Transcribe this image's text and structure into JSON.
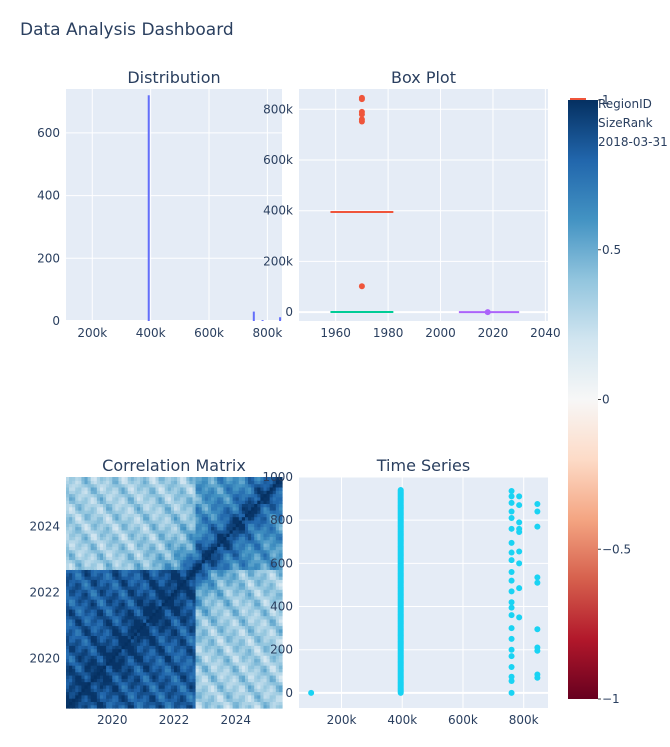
{
  "title": "Data Analysis Dashboard",
  "colors": {
    "plot_bg": "#e5ecf6",
    "grid": "#ffffff",
    "text": "#2a3f5f",
    "histogram": "#636efa",
    "series_regionid": "#ef553b",
    "series_sizerank": "#00cc96",
    "series_date": "#ab63fa",
    "scatter": "#19d3f3"
  },
  "legend": {
    "entries": [
      "RegionID",
      "SizeRank",
      "2018-03-31"
    ]
  },
  "colorbar": {
    "ticks": [
      {
        "label": "1",
        "value": 1
      },
      {
        "label": "0.5",
        "value": 0.5
      },
      {
        "label": "0",
        "value": 0
      },
      {
        "label": "−0.5",
        "value": -0.5
      },
      {
        "label": "−1",
        "value": -1
      }
    ],
    "colorscale": [
      "#67001f",
      "#b2182b",
      "#d6604d",
      "#f4a582",
      "#fddbc7",
      "#f7f7f7",
      "#d1e5f0",
      "#92c5de",
      "#4393c3",
      "#2166ac",
      "#053061"
    ]
  },
  "chart_data": [
    {
      "type": "bar",
      "title": "Distribution",
      "xlim": [
        110000,
        850000
      ],
      "ylim": [
        0,
        740
      ],
      "x_ticks": [
        {
          "label": "200k",
          "value": 200000
        },
        {
          "label": "400k",
          "value": 400000
        },
        {
          "label": "600k",
          "value": 600000
        },
        {
          "label": "800k",
          "value": 800000
        }
      ],
      "y_ticks": [
        {
          "label": "0",
          "value": 0
        },
        {
          "label": "200",
          "value": 200
        },
        {
          "label": "400",
          "value": 400
        },
        {
          "label": "600",
          "value": 600
        }
      ],
      "bins": [
        {
          "x0": 100000,
          "x1": 110000,
          "count": 1
        },
        {
          "x0": 390000,
          "x1": 400000,
          "count": 720
        },
        {
          "x0": 750000,
          "x1": 760000,
          "count": 30
        },
        {
          "x0": 780000,
          "x1": 790000,
          "count": 3
        },
        {
          "x0": 840000,
          "x1": 850000,
          "count": 12
        }
      ]
    },
    {
      "type": "box",
      "title": "Box Plot",
      "xlim": [
        1946,
        2041
      ],
      "ylim": [
        -35000,
        880000
      ],
      "x_ticks": [
        {
          "label": "1960",
          "value": 1960
        },
        {
          "label": "1980",
          "value": 1980
        },
        {
          "label": "2000",
          "value": 2000
        },
        {
          "label": "2020",
          "value": 2020
        },
        {
          "label": "2040",
          "value": 2040
        }
      ],
      "y_ticks": [
        {
          "label": "0",
          "value": 0
        },
        {
          "label": "200k",
          "value": 200000
        },
        {
          "label": "400k",
          "value": 400000
        },
        {
          "label": "600k",
          "value": 600000
        },
        {
          "label": "800k",
          "value": 800000
        }
      ],
      "series": [
        {
          "name": "RegionID",
          "x0": 1958,
          "x1": 1982,
          "median": 395000,
          "outliers_x": 1970,
          "outliers": [
            845000,
            840000,
            790000,
            780000,
            760000,
            752000,
            102000
          ]
        },
        {
          "name": "SizeRank",
          "x0": 1958,
          "x1": 1982,
          "median": 500,
          "outliers_x": 1970,
          "outliers": []
        },
        {
          "name": "2018-03-31",
          "x0": 2007,
          "x1": 2030,
          "median": 0,
          "outliers_x": 2018,
          "outliers": [
            0
          ]
        }
      ]
    },
    {
      "type": "heatmap",
      "title": "Correlation Matrix",
      "xlim": [
        2018.5,
        2025.5
      ],
      "ylim": [
        2018.5,
        2025.5
      ],
      "x_ticks": [
        {
          "label": "2020",
          "value": 2020
        },
        {
          "label": "2022",
          "value": 2022
        },
        {
          "label": "2024",
          "value": 2024
        }
      ],
      "y_ticks": [
        {
          "label": "2020",
          "value": 2020
        },
        {
          "label": "2022",
          "value": 2022
        },
        {
          "label": "2024",
          "value": 2024
        }
      ],
      "zlim": [
        -1,
        1
      ],
      "blocks": [
        {
          "from": 2018.5,
          "to": 2022.7,
          "within_corr": 0.82
        },
        {
          "from": 2022.7,
          "to": 2025.5,
          "within_corr": 0.55
        }
      ],
      "cross_block_corr": 0.35,
      "diagonal_corr": 1
    },
    {
      "type": "scatter",
      "title": "Time Series",
      "xlim": [
        60000,
        880000
      ],
      "ylim": [
        -60000,
        1000
      ],
      "ylim_data": [
        -70,
        1000
      ],
      "x_ticks": [
        {
          "label": "200k",
          "value": 200000
        },
        {
          "label": "400k",
          "value": 400000
        },
        {
          "label": "600k",
          "value": 600000
        },
        {
          "label": "800k",
          "value": 800000
        }
      ],
      "y_ticks": [
        {
          "label": "0",
          "value": 0
        },
        {
          "label": "200",
          "value": 200
        },
        {
          "label": "400",
          "value": 400
        },
        {
          "label": "600",
          "value": 600
        },
        {
          "label": "800",
          "value": 800
        },
        {
          "label": "1000",
          "value": 1000
        }
      ],
      "points": [
        {
          "x": 100000,
          "y": 0
        },
        {
          "x": 760000,
          "y": 935
        },
        {
          "x": 760000,
          "y": 910
        },
        {
          "x": 760000,
          "y": 880
        },
        {
          "x": 760000,
          "y": 840
        },
        {
          "x": 760000,
          "y": 810
        },
        {
          "x": 760000,
          "y": 760
        },
        {
          "x": 760000,
          "y": 695
        },
        {
          "x": 760000,
          "y": 650
        },
        {
          "x": 760000,
          "y": 615
        },
        {
          "x": 760000,
          "y": 560
        },
        {
          "x": 760000,
          "y": 520
        },
        {
          "x": 760000,
          "y": 470
        },
        {
          "x": 760000,
          "y": 420
        },
        {
          "x": 760000,
          "y": 395
        },
        {
          "x": 760000,
          "y": 360
        },
        {
          "x": 760000,
          "y": 300
        },
        {
          "x": 760000,
          "y": 250
        },
        {
          "x": 760000,
          "y": 200
        },
        {
          "x": 760000,
          "y": 170
        },
        {
          "x": 760000,
          "y": 120
        },
        {
          "x": 760000,
          "y": 75
        },
        {
          "x": 760000,
          "y": 55
        },
        {
          "x": 760000,
          "y": 0
        },
        {
          "x": 785000,
          "y": 910
        },
        {
          "x": 785000,
          "y": 870
        },
        {
          "x": 785000,
          "y": 790
        },
        {
          "x": 785000,
          "y": 760
        },
        {
          "x": 785000,
          "y": 745
        },
        {
          "x": 785000,
          "y": 655
        },
        {
          "x": 785000,
          "y": 600
        },
        {
          "x": 785000,
          "y": 485
        },
        {
          "x": 785000,
          "y": 350
        },
        {
          "x": 845000,
          "y": 875
        },
        {
          "x": 845000,
          "y": 840
        },
        {
          "x": 845000,
          "y": 770
        },
        {
          "x": 845000,
          "y": 535
        },
        {
          "x": 845000,
          "y": 510
        },
        {
          "x": 845000,
          "y": 295
        },
        {
          "x": 845000,
          "y": 210
        },
        {
          "x": 845000,
          "y": 195
        },
        {
          "x": 845000,
          "y": 85
        },
        {
          "x": 845000,
          "y": 70
        }
      ],
      "dense_column": {
        "x": 395000,
        "y_from": 0,
        "y_to": 940,
        "step": 5
      }
    }
  ]
}
